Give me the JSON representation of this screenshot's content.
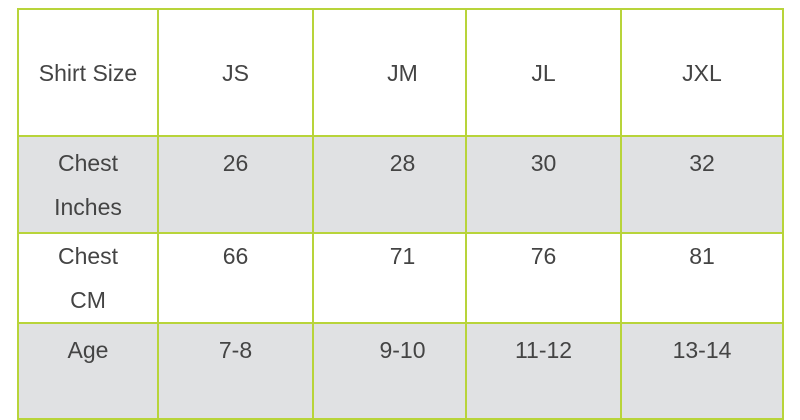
{
  "table": {
    "header": [
      "Shirt Size",
      "JS",
      "JM",
      "JL",
      "JXL"
    ],
    "rows": [
      {
        "label_lines": [
          "Chest",
          "Inches"
        ],
        "values": [
          "26",
          "28",
          "30",
          "32"
        ],
        "shaded": true
      },
      {
        "label_lines": [
          "Chest",
          "CM"
        ],
        "values": [
          "66",
          "71",
          "76",
          "81"
        ],
        "shaded": false
      },
      {
        "label_lines": [
          "Age"
        ],
        "values": [
          "7-8",
          "9-10",
          "11-12",
          "13-14"
        ],
        "shaded": true
      }
    ]
  },
  "colors": {
    "border": "#b8d43a",
    "shaded_row": "#e0e1e3",
    "text": "#444444"
  }
}
